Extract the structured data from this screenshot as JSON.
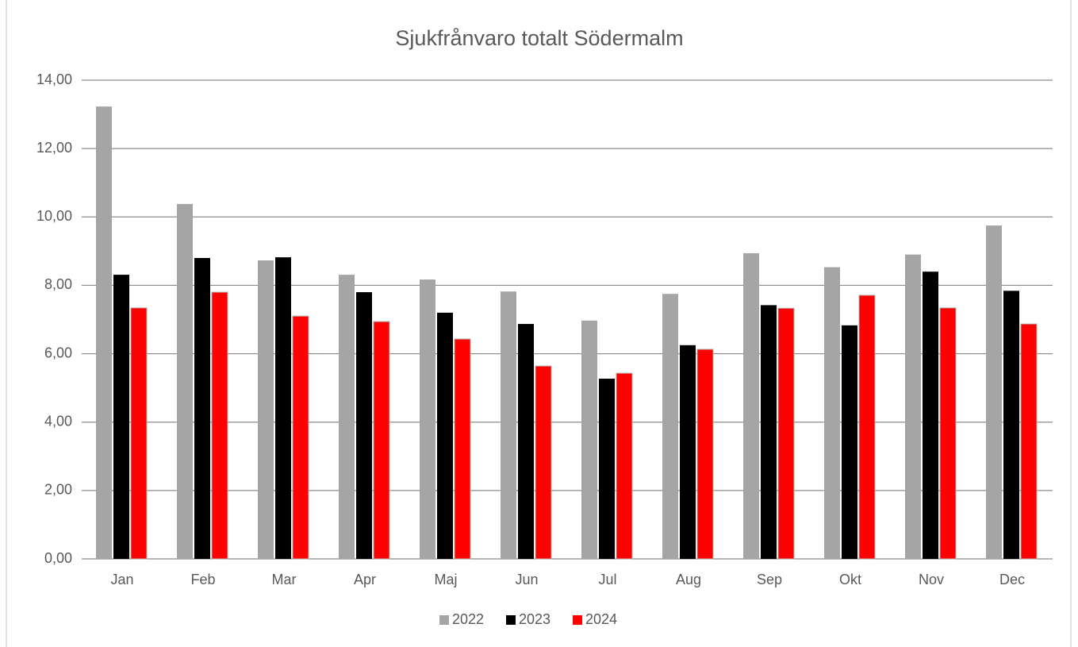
{
  "chart_data": {
    "type": "bar",
    "title": "Sjukfrånvaro totalt Södermalm",
    "categories": [
      "Jan",
      "Feb",
      "Mar",
      "Apr",
      "Maj",
      "Jun",
      "Jul",
      "Aug",
      "Sep",
      "Okt",
      "Nov",
      "Dec"
    ],
    "series": [
      {
        "name": "2022",
        "color": "#a5a5a5",
        "values": [
          13.23,
          10.38,
          8.73,
          8.31,
          8.17,
          7.82,
          6.97,
          7.75,
          8.94,
          8.53,
          8.9,
          9.75
        ]
      },
      {
        "name": "2023",
        "color": "#000000",
        "values": [
          8.31,
          8.8,
          8.82,
          7.8,
          7.2,
          6.87,
          5.27,
          6.25,
          7.42,
          6.83,
          8.4,
          7.84
        ]
      },
      {
        "name": "2024",
        "color": "#ff0000",
        "values": [
          7.34,
          7.8,
          7.1,
          6.94,
          6.43,
          5.64,
          5.43,
          6.13,
          7.33,
          7.71,
          7.34,
          6.87
        ]
      }
    ],
    "ylim": [
      0,
      14
    ],
    "yticks": [
      {
        "value": 0,
        "label": "0,00"
      },
      {
        "value": 2,
        "label": "2,00"
      },
      {
        "value": 4,
        "label": "4,00"
      },
      {
        "value": 6,
        "label": "6,00"
      },
      {
        "value": 8,
        "label": "8,00"
      },
      {
        "value": 10,
        "label": "10,00"
      },
      {
        "value": 12,
        "label": "12,00"
      },
      {
        "value": 14,
        "label": "14,00"
      }
    ],
    "grid": true,
    "legend": "bottom"
  }
}
